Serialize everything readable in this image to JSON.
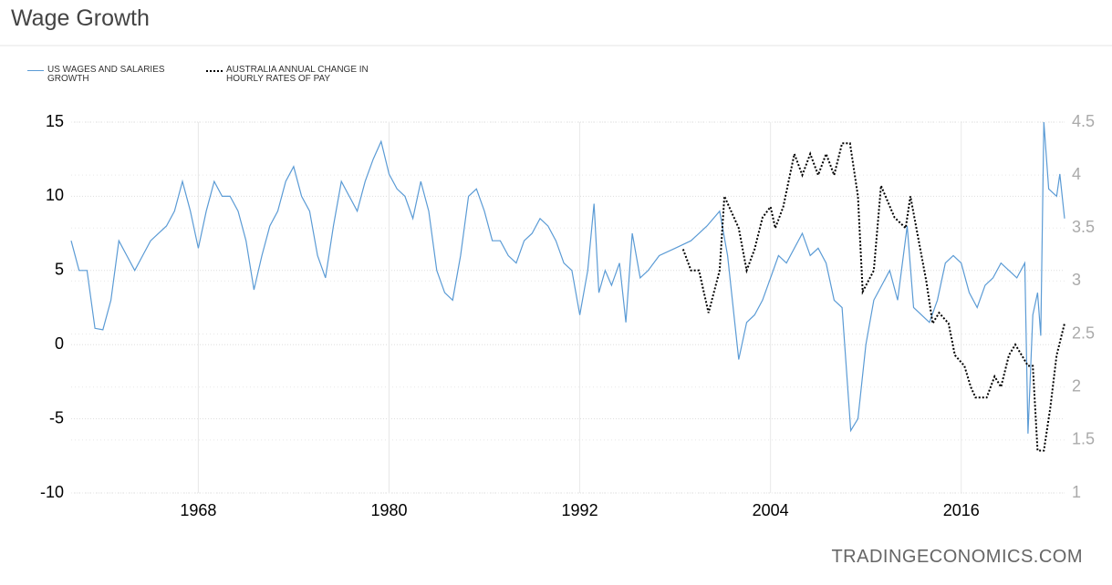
{
  "chart_data": {
    "type": "line",
    "title": "Wage Growth",
    "watermark": "TRADINGECONOMICS.COM",
    "xlim": [
      1960,
      2022.5
    ],
    "xticks": [
      1968,
      1980,
      1992,
      2004,
      2016
    ],
    "ylim": [
      -10,
      15
    ],
    "yticks": [
      -10,
      -5,
      0,
      5,
      10,
      15
    ],
    "y2lim": [
      1,
      4.5
    ],
    "y2ticks": [
      1,
      1.5,
      2,
      2.5,
      3,
      3.5,
      4,
      4.5
    ],
    "grid": true,
    "series": [
      {
        "name": "US WAGES AND SALARIES GROWTH",
        "color": "#5b9bd5",
        "style": "solid",
        "x": [
          1960,
          1960.5,
          1961,
          1961.5,
          1962,
          1962.5,
          1963,
          1963.5,
          1964,
          1964.5,
          1965,
          1965.5,
          1966,
          1966.5,
          1967,
          1967.5,
          1968,
          1968.5,
          1969,
          1969.5,
          1970,
          1970.5,
          1971,
          1971.5,
          1972,
          1972.5,
          1973,
          1973.5,
          1974,
          1974.5,
          1975,
          1975.5,
          1976,
          1976.5,
          1977,
          1977.5,
          1978,
          1978.5,
          1979,
          1979.5,
          1980,
          1980.5,
          1981,
          1981.5,
          1982,
          1982.5,
          1983,
          1983.5,
          1984,
          1984.5,
          1985,
          1985.5,
          1986,
          1986.5,
          1987,
          1987.5,
          1988,
          1988.5,
          1989,
          1989.5,
          1990,
          1990.5,
          1991,
          1991.5,
          1992,
          1992.5,
          1992.9,
          1993.2,
          1993.6,
          1994,
          1994.5,
          1994.9,
          1995.3,
          1995.8,
          1996.3,
          1997,
          1998,
          1999,
          2000,
          2000.8,
          2001.3,
          2002,
          2002.5,
          2003,
          2003.5,
          2004,
          2004.5,
          2005,
          2006,
          2006.5,
          2007,
          2007.5,
          2008,
          2008.5,
          2009.05,
          2009.5,
          2010,
          2010.5,
          2011,
          2011.5,
          2012,
          2012.6,
          2013,
          2014,
          2014.5,
          2015,
          2015.5,
          2016,
          2016.5,
          2017,
          2017.5,
          2018,
          2018.5,
          2019,
          2019.5,
          2020,
          2020.2,
          2020.5,
          2020.8,
          2021,
          2021.2,
          2021.5,
          2022,
          2022.2,
          2022.5
        ],
        "values": [
          7,
          5,
          5,
          1.1,
          1,
          3,
          7,
          6,
          5,
          6,
          7,
          7.5,
          8,
          9,
          11,
          9,
          6.5,
          9,
          11,
          10,
          10,
          9,
          7,
          3.7,
          6,
          8,
          9,
          11,
          12,
          10,
          9,
          6,
          4.5,
          8,
          11,
          10,
          9,
          11,
          12.5,
          13.7,
          11.5,
          10.5,
          10,
          8.5,
          11,
          9,
          5,
          3.5,
          3,
          6,
          10,
          10.5,
          9,
          7,
          7,
          6,
          5.5,
          7,
          7.5,
          8.5,
          8,
          7,
          5.5,
          5,
          2,
          5,
          9.5,
          3.5,
          5,
          4,
          5.5,
          1.5,
          7.5,
          4.5,
          5,
          6,
          6.5,
          7,
          8,
          9,
          6,
          -1,
          1.5,
          2,
          3,
          4.5,
          6,
          5.5,
          7.5,
          6,
          6.5,
          5.5,
          3,
          2.5,
          -5.8,
          -5,
          0,
          3,
          4,
          5,
          3,
          8,
          2.5,
          1.5,
          3,
          5.5,
          6,
          5.5,
          3.5,
          2.5,
          4,
          4.5,
          5.5,
          5,
          4.5,
          5.5,
          -6,
          2,
          3.5,
          0.6,
          15,
          10.5,
          10,
          11.5,
          8.5
        ]
      },
      {
        "name": "AUSTRALIA ANNUAL CHANGE IN HOURLY RATES OF PAY",
        "color": "#000000",
        "style": "dotted",
        "axis": "y2",
        "x": [
          1998.5,
          1999,
          1999.5,
          2000.1,
          2000.8,
          2001.1,
          2002,
          2002.5,
          2003,
          2003.5,
          2004,
          2004.3,
          2004.8,
          2005.5,
          2006,
          2006.5,
          2007,
          2007.5,
          2008,
          2008.5,
          2009,
          2009.5,
          2009.8,
          2010.5,
          2010.95,
          2011.8,
          2012.5,
          2012.8,
          2013.3,
          2013.8,
          2014.2,
          2014.6,
          2015.2,
          2015.6,
          2016.2,
          2016.6,
          2016.9,
          2017.6,
          2018.1,
          2018.5,
          2019,
          2019.4,
          2019.8,
          2020.2,
          2020.5,
          2020.8,
          2021.2,
          2021.6,
          2022,
          2022.5
        ],
        "values": [
          3.3,
          3.1,
          3.1,
          2.7,
          3.1,
          3.8,
          3.5,
          3.1,
          3.3,
          3.6,
          3.7,
          3.5,
          3.7,
          4.2,
          4,
          4.2,
          4,
          4.2,
          4,
          4.3,
          4.3,
          3.8,
          2.9,
          3.1,
          3.9,
          3.6,
          3.5,
          3.8,
          3.4,
          3,
          2.6,
          2.7,
          2.6,
          2.3,
          2.2,
          2,
          1.9,
          1.9,
          2.1,
          2,
          2.3,
          2.4,
          2.3,
          2.2,
          2.2,
          1.4,
          1.4,
          1.8,
          2.3,
          2.6
        ]
      }
    ]
  }
}
